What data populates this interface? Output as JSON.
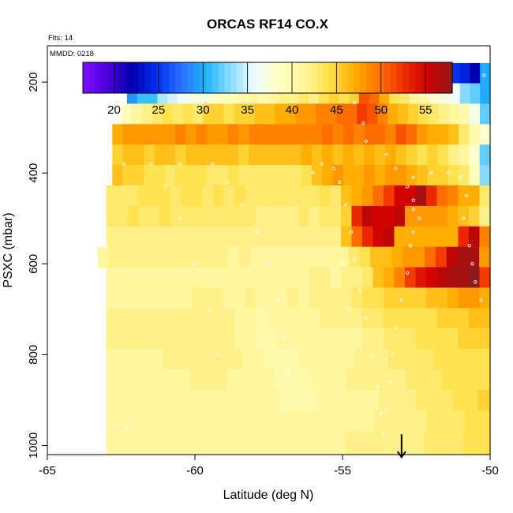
{
  "chart_data": {
    "type": "heatmap",
    "title": "ORCAS RF14 CO.X",
    "flights_label": "Flts: 14",
    "date_label": "MMDD: 0218",
    "xlabel": "Latitude (deg N)",
    "ylabel": "PSXC (mbar)",
    "xlim": [
      -65,
      -50
    ],
    "ylim": [
      1020,
      120
    ],
    "y_reversed": true,
    "xticks": [
      -65,
      -60,
      -55,
      -50
    ],
    "yticks": [
      200,
      400,
      600,
      800,
      1000
    ],
    "grid": false,
    "colorbar": {
      "range": [
        16.5,
        58
      ],
      "ticks": [
        20,
        25,
        30,
        35,
        40,
        45,
        50,
        55
      ],
      "palette": [
        "#7b10ff",
        "#4a00d8",
        "#0000b0",
        "#0030ee",
        "#2a70ff",
        "#1eb4ff",
        "#8cdcff",
        "#f0fcff",
        "#ffffc0",
        "#fff59a",
        "#ffe14a",
        "#ffae00",
        "#ff7400",
        "#f03000",
        "#d00000",
        "#8c1a1a"
      ]
    },
    "rows": [
      {
        "p": 180,
        "x0": -62.3,
        "x1": -50.0,
        "values": [
          20,
          19,
          19,
          20,
          20,
          19,
          22,
          21,
          22,
          20,
          21,
          21,
          20,
          23,
          22,
          21,
          21,
          19,
          22,
          20,
          22,
          31,
          31,
          32,
          33,
          30,
          31,
          31,
          30,
          29,
          29,
          28,
          25,
          24,
          22,
          30
        ]
      },
      {
        "p": 225,
        "x0": -62.3,
        "x1": -50.0,
        "values": [
          29,
          31,
          31,
          34,
          35,
          36,
          37,
          37,
          38,
          39,
          39,
          40,
          41,
          40,
          41,
          42,
          42,
          43,
          42,
          44,
          45,
          44,
          45,
          51,
          50,
          47,
          44,
          43,
          41,
          40,
          38,
          37,
          36,
          33,
          32,
          30
        ]
      },
      {
        "p": 270,
        "x0": -62.5,
        "x1": -50.0,
        "values": [
          39,
          41,
          42,
          43,
          44,
          43,
          44,
          43,
          45,
          45,
          44,
          45,
          45,
          46,
          46,
          47,
          47,
          48,
          48,
          49,
          49,
          50,
          50,
          52,
          51,
          49,
          47,
          46,
          45,
          44,
          43,
          42,
          41,
          40,
          37,
          32
        ]
      },
      {
        "p": 315,
        "x0": -62.8,
        "x1": -50.0,
        "values": [
          47,
          48,
          48,
          48,
          48,
          48,
          49,
          48,
          49,
          48,
          48,
          49,
          48,
          49,
          49,
          49,
          49,
          49,
          49,
          49,
          50,
          49,
          50,
          49,
          50,
          50,
          49,
          51,
          50,
          48,
          47,
          47,
          46,
          43,
          40,
          38
        ]
      },
      {
        "p": 360,
        "x0": -62.8,
        "x1": -50.0,
        "values": [
          45,
          46,
          46,
          45,
          46,
          46,
          45,
          46,
          46,
          46,
          46,
          46,
          45,
          46,
          46,
          46,
          46,
          46,
          47,
          46,
          47,
          46,
          47,
          46,
          47,
          46,
          47,
          46,
          45,
          44,
          45,
          44,
          42,
          41,
          38,
          32
        ]
      },
      {
        "p": 405,
        "x0": -62.8,
        "x1": -50.0,
        "values": [
          46,
          45,
          45,
          44,
          44,
          43,
          44,
          44,
          44,
          43,
          43,
          44,
          43,
          43,
          43,
          43,
          43,
          43,
          44,
          46,
          47,
          48,
          47,
          47,
          48,
          47,
          48,
          48,
          47,
          46,
          45,
          45,
          44,
          43,
          39,
          33
        ]
      },
      {
        "p": 450,
        "x0": -63.0,
        "x1": -50.0,
        "values": [
          43,
          43,
          43,
          44,
          44,
          44,
          43,
          44,
          44,
          43,
          44,
          43,
          44,
          43,
          43,
          43,
          43,
          43,
          43,
          43,
          44,
          43,
          46,
          47,
          48,
          50,
          52,
          55,
          55,
          57,
          53,
          50,
          49,
          47,
          47,
          43
        ]
      },
      {
        "p": 495,
        "x0": -63.0,
        "x1": -50.0,
        "values": [
          43,
          43,
          44,
          43,
          43,
          44,
          43,
          43,
          43,
          43,
          43,
          43,
          43,
          43,
          42,
          42,
          42,
          42,
          43,
          42,
          43,
          43,
          45,
          53,
          56,
          55,
          55,
          56,
          48,
          48,
          48,
          48,
          47,
          46,
          45,
          42
        ]
      },
      {
        "p": 540,
        "x0": -63.0,
        "x1": -50.0,
        "values": [
          42,
          42,
          42,
          42,
          42,
          42,
          42,
          42,
          42,
          42,
          42,
          42,
          42,
          42,
          42,
          42,
          42,
          42,
          42,
          42,
          42,
          42,
          46,
          50,
          53,
          55,
          56,
          47,
          47,
          47,
          47,
          47,
          47,
          53,
          56,
          49
        ]
      },
      {
        "p": 585,
        "x0": -63.3,
        "x1": -50.0,
        "values": [
          41,
          42,
          42,
          42,
          42,
          42,
          42,
          42,
          42,
          42,
          42,
          42,
          41,
          42,
          41,
          41,
          41,
          41,
          41,
          41,
          41,
          41,
          41,
          43,
          44,
          46,
          46,
          47,
          48,
          48,
          50,
          52,
          56,
          57,
          57,
          48
        ]
      },
      {
        "p": 630,
        "x0": -63.0,
        "x1": -50.0,
        "values": [
          41,
          41,
          41,
          41,
          41,
          41,
          41,
          41,
          41,
          41,
          41,
          41,
          41,
          41,
          41,
          41,
          41,
          41,
          41,
          42,
          42,
          41,
          42,
          42,
          43,
          46,
          47,
          49,
          52,
          54,
          55,
          56,
          57,
          57,
          58,
          52
        ]
      },
      {
        "p": 675,
        "x0": -63.0,
        "x1": -50.0,
        "values": [
          41,
          41,
          41,
          41,
          41,
          41,
          41,
          41,
          42,
          42,
          42,
          41,
          41,
          42,
          41,
          41,
          41,
          42,
          41,
          42,
          42,
          42,
          42,
          43,
          44,
          44,
          45,
          45,
          45,
          45,
          46,
          46,
          47,
          48,
          48,
          47
        ]
      },
      {
        "p": 720,
        "x0": -63.0,
        "x1": -50.0,
        "values": [
          42,
          42,
          42,
          42,
          42,
          42,
          42,
          42,
          42,
          42,
          42,
          42,
          41,
          41,
          40,
          41,
          41,
          41,
          41,
          41,
          42,
          42,
          42,
          42,
          43,
          43,
          44,
          44,
          44,
          44,
          44,
          45,
          45,
          45,
          46,
          46
        ]
      },
      {
        "p": 765,
        "x0": -63.0,
        "x1": -50.0,
        "values": [
          42,
          42,
          42,
          42,
          42,
          42,
          42,
          42,
          42,
          42,
          42,
          42,
          41,
          41,
          40,
          40,
          41,
          41,
          41,
          41,
          41,
          41,
          41,
          41,
          42,
          42,
          43,
          43,
          43,
          44,
          44,
          44,
          44,
          45,
          45,
          45
        ]
      },
      {
        "p": 810,
        "x0": -63.0,
        "x1": -50.0,
        "values": [
          41,
          41,
          41,
          41,
          41,
          42,
          42,
          42,
          42,
          42,
          42,
          42,
          41,
          41,
          40,
          40,
          40,
          41,
          41,
          41,
          41,
          41,
          42,
          42,
          42,
          43,
          43,
          43,
          43,
          44,
          44,
          44,
          44,
          44
        ]
      },
      {
        "p": 855,
        "x0": -63.0,
        "x1": -50.0,
        "values": [
          41,
          41,
          41,
          41,
          41,
          41,
          41,
          42,
          42,
          42,
          41,
          41,
          41,
          41,
          40,
          40,
          40,
          41,
          41,
          41,
          42,
          42,
          42,
          42,
          42,
          43,
          43,
          43,
          44,
          44,
          44,
          44
        ]
      },
      {
        "p": 900,
        "x0": -63.0,
        "x1": -50.0,
        "values": [
          41,
          41,
          41,
          41,
          41,
          41,
          41,
          41,
          41,
          41,
          41,
          41,
          41,
          41,
          40,
          40,
          40,
          41,
          41,
          41,
          41,
          41,
          42,
          42,
          42,
          43,
          43,
          43,
          44,
          44,
          45
        ]
      },
      {
        "p": 945,
        "x0": -63.0,
        "x1": -50.0,
        "values": [
          41,
          41,
          41,
          41,
          41,
          41,
          41,
          41,
          41,
          41,
          41,
          41,
          41,
          41,
          41,
          41,
          41,
          41,
          41,
          41,
          41,
          42,
          42,
          42,
          42,
          43,
          43,
          43,
          44,
          44
        ]
      },
      {
        "p": 990,
        "x0": -63.0,
        "x1": -50.0,
        "values": [
          41,
          41,
          41,
          41,
          41,
          41,
          41,
          41,
          41,
          41,
          41,
          41,
          41,
          41,
          41,
          41,
          41,
          41,
          42,
          42,
          42,
          42,
          42,
          42,
          43,
          43,
          43,
          44,
          44
        ]
      }
    ],
    "flight_track": [
      [
        -62.3,
        185
      ],
      [
        -61.0,
        185
      ],
      [
        -59.8,
        185
      ],
      [
        -58.6,
        185
      ],
      [
        -57.3,
        185
      ],
      [
        -56.1,
        185
      ],
      [
        -55.2,
        185
      ],
      [
        -54.9,
        210
      ],
      [
        -54.6,
        245
      ],
      [
        -54.3,
        290
      ],
      [
        -54.2,
        330
      ],
      [
        -53.5,
        360
      ],
      [
        -53.2,
        390
      ],
      [
        -52.8,
        430
      ],
      [
        -52.6,
        460
      ],
      [
        -52.6,
        480
      ],
      [
        -52.4,
        500
      ],
      [
        -52.6,
        530
      ],
      [
        -52.7,
        560
      ],
      [
        -52.8,
        620
      ],
      [
        -53.0,
        680
      ],
      [
        -53.2,
        740
      ],
      [
        -53.3,
        800
      ],
      [
        -53.4,
        860
      ],
      [
        -53.5,
        920
      ],
      [
        -53.6,
        975
      ],
      [
        -52.6,
        410
      ],
      [
        -52.0,
        400
      ],
      [
        -51.4,
        400
      ],
      [
        -51.0,
        410
      ],
      [
        -50.8,
        450
      ],
      [
        -50.9,
        500
      ],
      [
        -50.7,
        560
      ],
      [
        -50.6,
        600
      ],
      [
        -50.5,
        640
      ],
      [
        -50.3,
        680
      ],
      [
        -50.2,
        185
      ],
      [
        -51.8,
        185
      ],
      [
        -62.9,
        350
      ],
      [
        -62.4,
        380
      ],
      [
        -61.5,
        380
      ],
      [
        -60.5,
        380
      ],
      [
        -59.4,
        380
      ],
      [
        -58.9,
        420
      ],
      [
        -58.4,
        470
      ],
      [
        -57.9,
        530
      ],
      [
        -57.5,
        600
      ],
      [
        -57.2,
        680
      ],
      [
        -57.0,
        760
      ],
      [
        -56.8,
        840
      ],
      [
        -56.6,
        900
      ],
      [
        -56.0,
        400
      ],
      [
        -55.7,
        380
      ],
      [
        -55.3,
        390
      ],
      [
        -55.1,
        420
      ],
      [
        -54.9,
        470
      ],
      [
        -54.7,
        530
      ],
      [
        -54.6,
        590
      ],
      [
        -54.4,
        660
      ],
      [
        -54.2,
        720
      ],
      [
        -54.0,
        800
      ],
      [
        -53.8,
        870
      ],
      [
        -53.7,
        930
      ],
      [
        -61.0,
        430
      ],
      [
        -60.5,
        500
      ],
      [
        -60.0,
        600
      ],
      [
        -59.5,
        700
      ],
      [
        -59.2,
        800
      ],
      [
        -59.0,
        900
      ],
      [
        -62.6,
        955
      ],
      [
        -62.3,
        960
      ],
      [
        -55.0,
        600
      ],
      [
        -54.8,
        700
      ]
    ],
    "marker": {
      "lat": -53.0,
      "p": 1010
    }
  }
}
